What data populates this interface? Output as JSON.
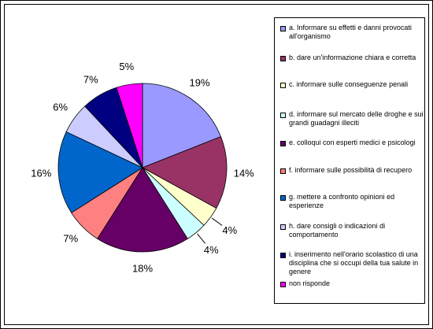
{
  "chart_data": {
    "type": "pie",
    "categories": [
      "a. Informare su effetti e danni provocati all'organismo",
      "b. dare un'informazione chiara e corretta",
      "c. informare sulle conseguenze penali",
      "d. informare sul mercato delle droghe e sui grandi guadagni illeciti",
      "e. colloqui con esperti medici e psicologi",
      "f. informare sulle possibilità di recupero",
      "g. mettere a confronto opinioni ed esperienze",
      "h. dare consigli o indicazioni di comportamento",
      "i. inserimento nell'orario scolastico di una disciplina che si occupi della tua salute in genere",
      "non risponde"
    ],
    "values": [
      19,
      14,
      4,
      4,
      18,
      7,
      16,
      6,
      7,
      5
    ],
    "value_labels": [
      "19%",
      "14%",
      "4%",
      "4%",
      "18%",
      "7%",
      "16%",
      "6%",
      "7%",
      "5%"
    ],
    "colors": [
      "#9999ff",
      "#993366",
      "#ffffcc",
      "#ccffff",
      "#660066",
      "#ff8080",
      "#0066cc",
      "#ccccff",
      "#000080",
      "#ff00ff"
    ],
    "legend": "right"
  }
}
